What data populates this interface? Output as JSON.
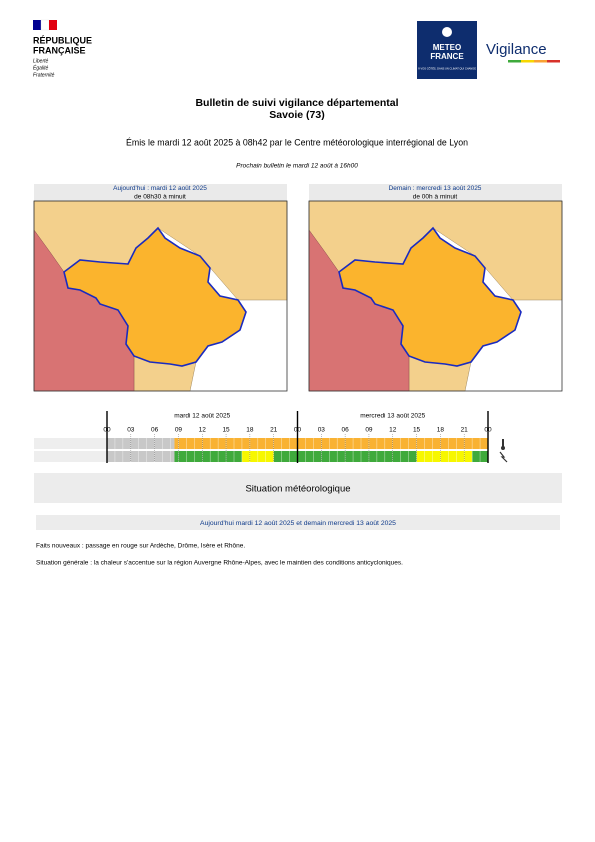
{
  "header": {
    "republique": [
      "RÉPUBLIQUE",
      "FRANÇAISE"
    ],
    "devise": [
      "Liberté",
      "Égalité",
      "Fraternité"
    ],
    "meteo": [
      "METEO",
      "FRANCE"
    ],
    "tagline": "À VOS CÔTÉS, DANS UN CLIMAT QUI CHANGE",
    "vigilance": "Vigilance"
  },
  "title": {
    "line1": "Bulletin de suivi vigilance départemental",
    "line2": "Savoie (73)",
    "issued": "Émis le mardi 12 août 2025 à 08h42 par le Centre météorologique interrégional de Lyon",
    "next": "Prochain bulletin le mardi 12 août à 16h00"
  },
  "maps": [
    {
      "day": "Aujourd'hui : mardi 12 août 2025",
      "period": "de 08h30 à minuit"
    },
    {
      "day": "Demain : mercredi 13 août 2025",
      "period": "de 00h à minuit"
    }
  ],
  "timeline": {
    "days": [
      "mardi 12 août 2025",
      "mercredi 13 août 2025"
    ],
    "hours": [
      "00",
      "03",
      "06",
      "09",
      "12",
      "15",
      "18",
      "21",
      "00",
      "03",
      "06",
      "09",
      "12",
      "15",
      "18",
      "21",
      "00"
    ],
    "rows": [
      {
        "name": "Canicule",
        "segments": [
          {
            "from": 0,
            "to": 8.5,
            "color": "#c8c8c8"
          },
          {
            "from": 8.5,
            "to": 48,
            "color": "#f9b233"
          }
        ]
      },
      {
        "name": "Orages",
        "segments": [
          {
            "from": 0,
            "to": 8.5,
            "color": "#c8c8c8"
          },
          {
            "from": 8.5,
            "to": 17,
            "color": "#3faa3c"
          },
          {
            "from": 17,
            "to": 21,
            "color": "#f7f700"
          },
          {
            "from": 21,
            "to": 39,
            "color": "#3faa3c"
          },
          {
            "from": 39,
            "to": 46,
            "color": "#f7f700"
          },
          {
            "from": 46,
            "to": 48,
            "color": "#3faa3c"
          }
        ]
      }
    ]
  },
  "situation": {
    "heading": "Situation météorologique",
    "subheading": "Aujourd'hui mardi 12 août 2025 et demain mercredi 13 août 2025",
    "paragraphs": [
      "Faits nouveaux : passage en rouge sur Ardèche, Drôme, Isère et Rhône.",
      "Situation générale : la chaleur s'accentue sur la région Auvergne Rhône-Alpes, avec le maintien des conditions anticycloniques."
    ]
  }
}
